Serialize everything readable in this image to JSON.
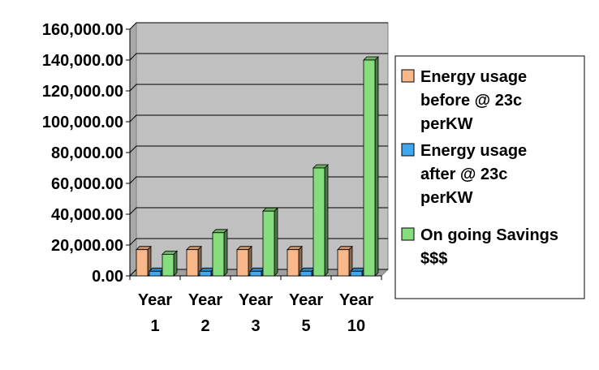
{
  "chart_data": {
    "type": "bar",
    "categories": [
      [
        "Year",
        "1"
      ],
      [
        "Year",
        "2"
      ],
      [
        "Year",
        "3"
      ],
      [
        "Year",
        "5"
      ],
      [
        "Year",
        "10"
      ]
    ],
    "series": [
      {
        "name": [
          "Energy usage",
          "before @ 23c",
          "perKW"
        ],
        "color": "#f8b889",
        "values": [
          17000,
          17000,
          17000,
          17000,
          17000
        ]
      },
      {
        "name": [
          "Energy usage",
          "after @ 23c",
          "perKW"
        ],
        "color": "#3fa8f0",
        "values": [
          3000,
          3000,
          3000,
          3000,
          3000
        ]
      },
      {
        "name": [
          "On going Savings",
          "$$$"
        ],
        "color": "#86dd7d",
        "values": [
          14000,
          28000,
          42000,
          70000,
          140000
        ]
      }
    ],
    "ylim": [
      0,
      160000
    ],
    "yticks": [
      "0.00",
      "20,000.00",
      "40,000.00",
      "60,000.00",
      "80,000.00",
      "100,000.00",
      "120,000.00",
      "140,000.00",
      "160,000.00"
    ],
    "grid": true,
    "legend_position": "right",
    "plot_background": "#c0c0c0",
    "three_d": true
  }
}
